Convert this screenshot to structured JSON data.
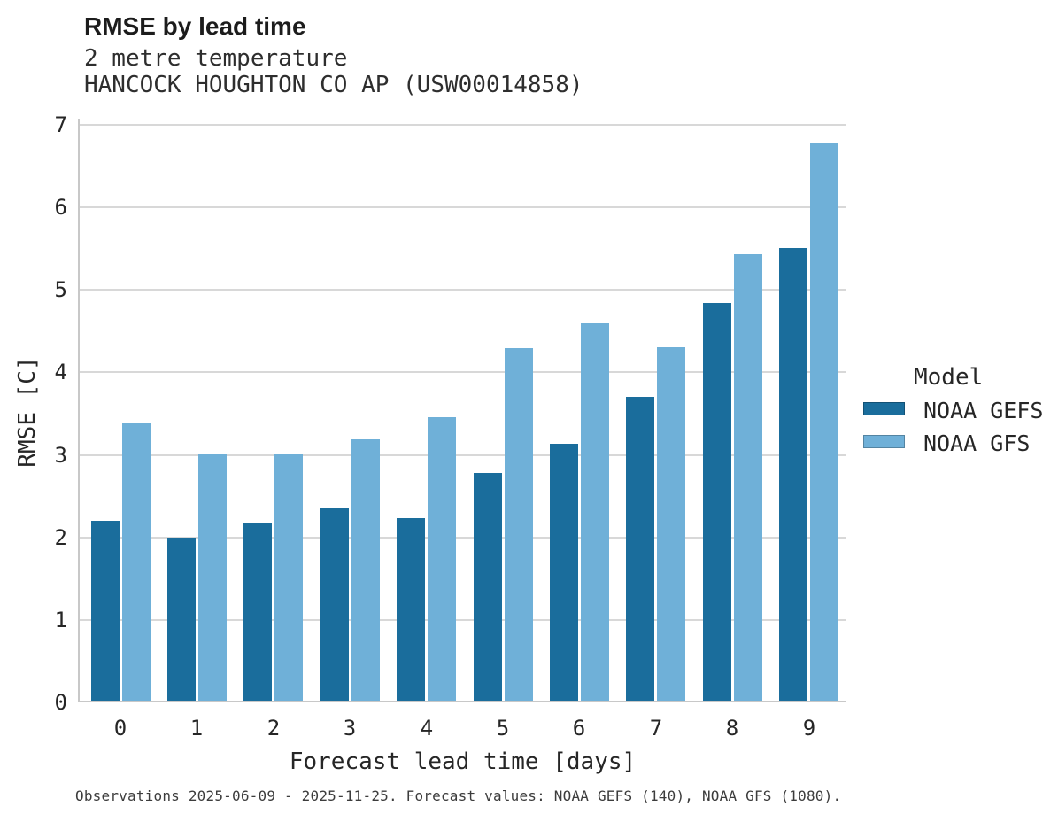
{
  "header": {
    "title": "RMSE by lead time",
    "subtitle": "2 metre temperature",
    "station": "HANCOCK HOUGHTON CO AP (USW00014858)"
  },
  "caption": "Observations 2025-06-09 - 2025-11-25. Forecast values: NOAA GEFS (140), NOAA GFS (1080).",
  "legend": {
    "title": "Model",
    "entries": [
      {
        "label": "NOAA GEFS",
        "color": "#1A6D9C"
      },
      {
        "label": "NOAA GFS",
        "color": "#6FB0D8"
      }
    ]
  },
  "colors": {
    "gefs": "#1A6D9C",
    "gfs": "#6FB0D8",
    "gridline": "#D8D8D8",
    "axis": "#C8C8C8"
  },
  "chart_data": {
    "type": "bar",
    "title": "RMSE by lead time",
    "subtitle": "2 metre temperature",
    "station": "HANCOCK HOUGHTON CO AP (USW00014858)",
    "xlabel": "Forecast lead time [days]",
    "ylabel": "RMSE [C]",
    "categories": [
      "0",
      "1",
      "2",
      "3",
      "4",
      "5",
      "6",
      "7",
      "8",
      "9"
    ],
    "series": [
      {
        "name": "NOAA GEFS",
        "color": "#1A6D9C",
        "values": [
          2.2,
          2.0,
          2.18,
          2.35,
          2.23,
          2.78,
          3.13,
          3.7,
          4.84,
          5.51
        ]
      },
      {
        "name": "NOAA GFS",
        "color": "#6FB0D8",
        "values": [
          3.39,
          3.01,
          3.02,
          3.19,
          3.46,
          4.29,
          4.59,
          4.3,
          5.43,
          6.78
        ]
      }
    ],
    "ylim": [
      0,
      7
    ],
    "yticks": [
      0,
      1,
      2,
      3,
      4,
      5,
      6,
      7
    ],
    "grid": true,
    "legend_title": "Model",
    "legend_position": "right"
  }
}
